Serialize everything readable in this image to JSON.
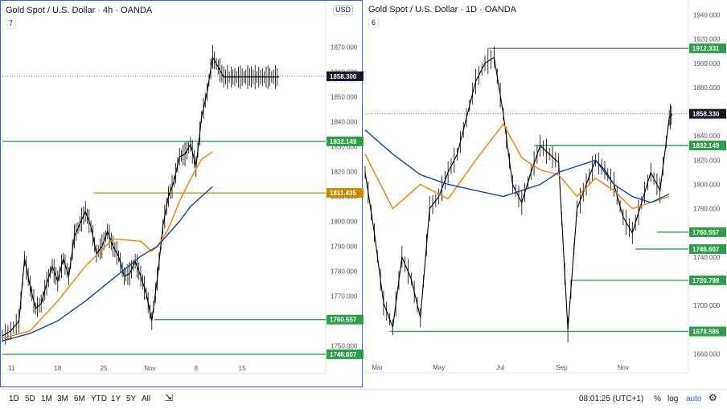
{
  "chart_data": [
    {
      "type": "line",
      "title": "Gold Spot / U.S. Dollar · 4h · OANDA",
      "indicator_badge": "7",
      "unit_selector": "USD",
      "x_tick_labels": [
        "11",
        "18",
        "25",
        "Nov",
        "8",
        "15"
      ],
      "y_ticks": [
        1750,
        1760,
        1770,
        1780,
        1790,
        1800,
        1810,
        1820,
        1830,
        1840,
        1850,
        1860,
        1870
      ],
      "ylim": [
        1744,
        1877
      ],
      "last_price": 1858.3,
      "grid": false,
      "series": [
        {
          "kind": "price",
          "color": "#000000",
          "x": [
            0,
            3,
            6,
            8,
            10,
            12,
            14,
            16,
            18,
            20,
            22,
            24,
            26,
            28,
            30,
            32,
            34,
            36,
            38,
            40,
            42,
            44,
            46,
            48,
            50,
            52,
            54,
            56,
            58,
            60,
            62,
            64,
            66,
            68,
            70,
            72,
            74,
            76,
            78,
            80,
            82,
            84,
            86,
            88,
            90,
            92,
            94,
            96,
            98,
            100
          ],
          "values": [
            1754,
            1756,
            1760,
            1785,
            1774,
            1765,
            1767,
            1775,
            1782,
            1776,
            1785,
            1778,
            1794,
            1799,
            1804,
            1798,
            1787,
            1790,
            1796,
            1790,
            1786,
            1778,
            1779,
            1784,
            1778,
            1771,
            1760,
            1777,
            1798,
            1810,
            1816,
            1826,
            1827,
            1831,
            1822,
            1842,
            1852,
            1866,
            1862,
            1858,
            1858,
            1858,
            1858,
            1858,
            1858,
            1858,
            1858,
            1858,
            1858,
            1858
          ]
        },
        {
          "kind": "ma-fast",
          "color": "#f57c00",
          "x": [
            0,
            10,
            20,
            30,
            40,
            50,
            54,
            56,
            60,
            64,
            68,
            72,
            76
          ],
          "values": [
            1753,
            1756,
            1768,
            1782,
            1793,
            1792,
            1788,
            1790,
            1797,
            1808,
            1817,
            1825,
            1828
          ]
        },
        {
          "kind": "ma-slow",
          "color": "#0d47a1",
          "x": [
            0,
            10,
            20,
            30,
            40,
            50,
            56,
            60,
            64,
            68,
            72,
            76
          ],
          "values": [
            1752,
            1755,
            1760,
            1768,
            1777,
            1786,
            1790,
            1795,
            1800,
            1806,
            1810,
            1814
          ]
        }
      ],
      "levels": [
        {
          "value": 1832.149,
          "label": "1832.149",
          "color": "#2e9e4a",
          "x_from": 0
        },
        {
          "value": 1811.435,
          "label": "1811.435",
          "color": "#c58b00",
          "x_from": 33
        },
        {
          "value": 1760.557,
          "label": "1760.557",
          "color": "#2e9e4a",
          "x_from": 55
        },
        {
          "value": 1746.607,
          "label": "1746.607",
          "color": "#2e9e4a",
          "x_from": 0
        }
      ]
    },
    {
      "type": "line",
      "title": "Gold Spot / U.S. Dollar · 1D · OANDA",
      "indicator_badge": "6",
      "x_tick_labels": [
        "Mar",
        "May",
        "Jul",
        "Sep",
        "Nov"
      ],
      "y_ticks": [
        1660,
        1680,
        1700,
        1720,
        1740,
        1760,
        1780,
        1800,
        1820,
        1840,
        1860,
        1880,
        1900,
        1920,
        1940
      ],
      "ylim": [
        1655,
        1943
      ],
      "last_price": 1858.33,
      "grid": false,
      "series": [
        {
          "kind": "price",
          "color": "#000000",
          "x": [
            0,
            3,
            6,
            9,
            12,
            15,
            18,
            21,
            24,
            27,
            30,
            33,
            36,
            39,
            42,
            45,
            48,
            51,
            54,
            57,
            60,
            63,
            66,
            69,
            72,
            75,
            78,
            81,
            84,
            87,
            90,
            93,
            96,
            99,
            100
          ],
          "values": [
            1810,
            1760,
            1702,
            1682,
            1740,
            1722,
            1690,
            1780,
            1790,
            1810,
            1825,
            1855,
            1885,
            1900,
            1905,
            1858,
            1800,
            1785,
            1810,
            1832,
            1825,
            1818,
            1680,
            1780,
            1800,
            1820,
            1812,
            1800,
            1773,
            1760,
            1785,
            1810,
            1795,
            1855,
            1858
          ]
        },
        {
          "kind": "ma-fast",
          "color": "#f57c00",
          "x": [
            0,
            9,
            18,
            27,
            36,
            45,
            51,
            57,
            63,
            69,
            75,
            81,
            87,
            93,
            99
          ],
          "values": [
            1825,
            1780,
            1800,
            1788,
            1820,
            1850,
            1822,
            1812,
            1808,
            1790,
            1805,
            1795,
            1780,
            1785,
            1790
          ]
        },
        {
          "kind": "ma-slow",
          "color": "#0d47a1",
          "x": [
            0,
            9,
            18,
            27,
            36,
            45,
            51,
            57,
            63,
            69,
            75,
            81,
            87,
            93,
            99
          ],
          "values": [
            1845,
            1825,
            1808,
            1800,
            1795,
            1790,
            1795,
            1800,
            1810,
            1815,
            1820,
            1800,
            1790,
            1785,
            1792
          ]
        }
      ],
      "levels": [
        {
          "value": 1912.331,
          "label": "1912.331",
          "color": "#2e9e4a",
          "x_from": 40
        },
        {
          "value": 1832.149,
          "label": "1832.149",
          "color": "#2e9e4a",
          "x_from": 55
        },
        {
          "value": 1760.557,
          "label": "1760.557",
          "color": "#2e9e4a",
          "x_from": 95
        },
        {
          "value": 1746.607,
          "label": "1746.607",
          "color": "#2e9e4a",
          "x_from": 88
        },
        {
          "value": 1720.799,
          "label": "1720.799",
          "color": "#2e9e4a",
          "x_from": 67
        },
        {
          "value": 1678.586,
          "label": "1678.586",
          "color": "#2e9e4a",
          "x_from": 8
        }
      ]
    }
  ],
  "toolbar": {
    "ranges": [
      "1D",
      "5D",
      "1M",
      "3M",
      "6M",
      "YTD",
      "1Y",
      "5Y",
      "All"
    ],
    "time": "08:01:25 (UTC+1)",
    "percent": "%",
    "log": "log",
    "auto": "auto"
  }
}
